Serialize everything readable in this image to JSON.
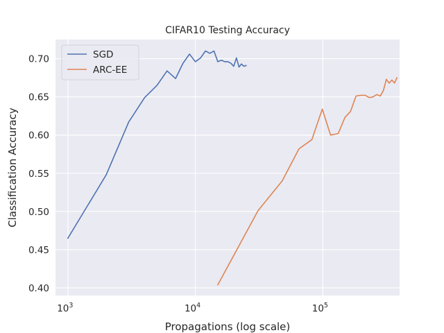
{
  "chart_data": {
    "type": "line",
    "title": "CIFAR10 Testing Accuracy",
    "xlabel": "Propagations (log scale)",
    "ylabel": "Classification Accuracy",
    "xscale": "log",
    "xlim": [
      800,
      400000
    ],
    "ylim": [
      0.39,
      0.725
    ],
    "xticks": [
      {
        "value": 1000,
        "base": "10",
        "exp": "3"
      },
      {
        "value": 10000,
        "base": "10",
        "exp": "4"
      },
      {
        "value": 100000,
        "base": "10",
        "exp": "5"
      }
    ],
    "yticks": [
      {
        "value": 0.4,
        "label": "0.40"
      },
      {
        "value": 0.45,
        "label": "0.45"
      },
      {
        "value": 0.5,
        "label": "0.50"
      },
      {
        "value": 0.55,
        "label": "0.55"
      },
      {
        "value": 0.6,
        "label": "0.60"
      },
      {
        "value": 0.65,
        "label": "0.65"
      },
      {
        "value": 0.7,
        "label": "0.70"
      }
    ],
    "grid": true,
    "legend": "top-left",
    "background_color": "#eaeaf2",
    "grid_color": "#ffffff",
    "series": [
      {
        "name": "SGD",
        "color": "#4c72b0",
        "x": [
          1000,
          2000,
          3000,
          4000,
          5000,
          6000,
          7000,
          8000,
          9000,
          10000,
          11000,
          12000,
          13000,
          14000,
          15000,
          16000,
          17000,
          18000,
          19000,
          20000,
          21000,
          22000,
          23000,
          24000,
          25000
        ],
        "y": [
          0.465,
          0.548,
          0.617,
          0.649,
          0.665,
          0.684,
          0.674,
          0.694,
          0.706,
          0.696,
          0.701,
          0.71,
          0.707,
          0.71,
          0.696,
          0.698,
          0.696,
          0.696,
          0.694,
          0.69,
          0.701,
          0.689,
          0.693,
          0.69,
          0.691
        ]
      },
      {
        "name": "ARC-EE",
        "color": "#dd8452",
        "x": [
          15000,
          31000,
          48000,
          65000,
          82000,
          99000,
          115000,
          132000,
          149000,
          165000,
          182000,
          198000,
          215000,
          232000,
          248000,
          265000,
          282000,
          298000,
          315000,
          331000,
          348000,
          365000,
          381000
        ],
        "y": [
          0.404,
          0.501,
          0.54,
          0.582,
          0.594,
          0.634,
          0.6,
          0.602,
          0.623,
          0.631,
          0.651,
          0.652,
          0.652,
          0.649,
          0.65,
          0.653,
          0.651,
          0.658,
          0.673,
          0.668,
          0.672,
          0.668,
          0.675
        ]
      }
    ]
  }
}
